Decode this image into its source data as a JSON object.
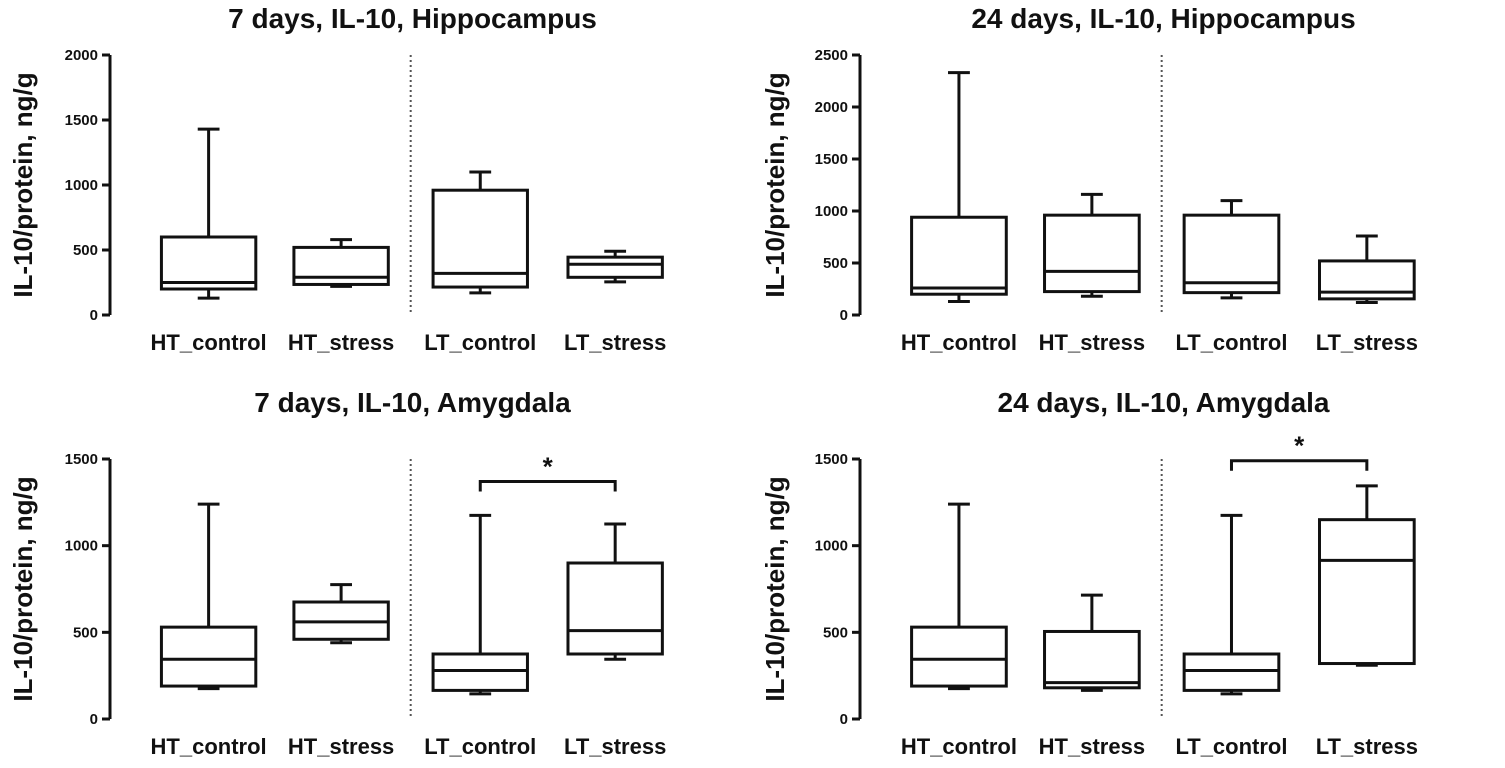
{
  "figure": {
    "colors": {
      "background": "#ffffff",
      "ink": "#111111",
      "separator": "#555555"
    }
  },
  "chart_data": [
    {
      "type": "boxplot",
      "title": "7 days, IL-10, Hippocampus",
      "xlabel": "",
      "ylabel": "IL-10/protein, ng/g",
      "ylim": [
        0,
        2000
      ],
      "yticks": [
        0,
        500,
        1000,
        1500,
        2000
      ],
      "categories": [
        "HT_control",
        "HT_stress",
        "LT_control",
        "LT_stress"
      ],
      "separator_after": "HT_stress",
      "boxes": [
        {
          "category": "HT_control",
          "min": 130,
          "q1": 200,
          "median": 250,
          "q3": 600,
          "max": 1430
        },
        {
          "category": "HT_stress",
          "min": 220,
          "q1": 235,
          "median": 290,
          "q3": 520,
          "max": 580
        },
        {
          "category": "LT_control",
          "min": 170,
          "q1": 215,
          "median": 320,
          "q3": 960,
          "max": 1100
        },
        {
          "category": "LT_stress",
          "min": 255,
          "q1": 290,
          "median": 390,
          "q3": 445,
          "max": 490
        }
      ],
      "annotations": []
    },
    {
      "type": "boxplot",
      "title": "24 days, IL-10, Hippocampus",
      "xlabel": "",
      "ylabel": "IL-10/protein, ng/g",
      "ylim": [
        0,
        2500
      ],
      "yticks": [
        0,
        500,
        1000,
        1500,
        2000,
        2500
      ],
      "categories": [
        "HT_control",
        "HT_stress",
        "LT_control",
        "LT_stress"
      ],
      "separator_after": "HT_stress",
      "boxes": [
        {
          "category": "HT_control",
          "min": 130,
          "q1": 200,
          "median": 260,
          "q3": 940,
          "max": 2330
        },
        {
          "category": "HT_stress",
          "min": 180,
          "q1": 225,
          "median": 420,
          "q3": 960,
          "max": 1160
        },
        {
          "category": "LT_control",
          "min": 165,
          "q1": 215,
          "median": 310,
          "q3": 960,
          "max": 1100
        },
        {
          "category": "LT_stress",
          "min": 120,
          "q1": 155,
          "median": 220,
          "q3": 520,
          "max": 760
        }
      ],
      "annotations": []
    },
    {
      "type": "boxplot",
      "title": "7 days, IL-10, Amygdala",
      "xlabel": "",
      "ylabel": "IL-10/protein, ng/g",
      "ylim": [
        0,
        1500
      ],
      "yticks": [
        0,
        500,
        1000,
        1500
      ],
      "categories": [
        "HT_control",
        "HT_stress",
        "LT_control",
        "LT_stress"
      ],
      "separator_after": "HT_stress",
      "boxes": [
        {
          "category": "HT_control",
          "min": 175,
          "q1": 190,
          "median": 345,
          "q3": 530,
          "max": 1240
        },
        {
          "category": "HT_stress",
          "min": 440,
          "q1": 460,
          "median": 560,
          "q3": 675,
          "max": 775
        },
        {
          "category": "LT_control",
          "min": 145,
          "q1": 165,
          "median": 280,
          "q3": 375,
          "max": 1175
        },
        {
          "category": "LT_stress",
          "min": 345,
          "q1": 375,
          "median": 510,
          "q3": 900,
          "max": 1125
        }
      ],
      "annotations": [
        {
          "text": "*",
          "from": "LT_control",
          "to": "LT_stress",
          "y": 1370
        }
      ]
    },
    {
      "type": "boxplot",
      "title": "24 days, IL-10, Amygdala",
      "xlabel": "",
      "ylabel": "IL-10/protein, ng/g",
      "ylim": [
        0,
        1500
      ],
      "yticks": [
        0,
        500,
        1000,
        1500
      ],
      "categories": [
        "HT_control",
        "HT_stress",
        "LT_control",
        "LT_stress"
      ],
      "separator_after": "HT_stress",
      "boxes": [
        {
          "category": "HT_control",
          "min": 175,
          "q1": 190,
          "median": 345,
          "q3": 530,
          "max": 1240
        },
        {
          "category": "HT_stress",
          "min": 165,
          "q1": 180,
          "median": 210,
          "q3": 505,
          "max": 715
        },
        {
          "category": "LT_control",
          "min": 145,
          "q1": 165,
          "median": 280,
          "q3": 375,
          "max": 1175
        },
        {
          "category": "LT_stress",
          "min": 310,
          "q1": 320,
          "median": 915,
          "q3": 1150,
          "max": 1345
        }
      ],
      "annotations": [
        {
          "text": "*",
          "from": "LT_control",
          "to": "LT_stress",
          "y": 1490
        }
      ]
    }
  ]
}
